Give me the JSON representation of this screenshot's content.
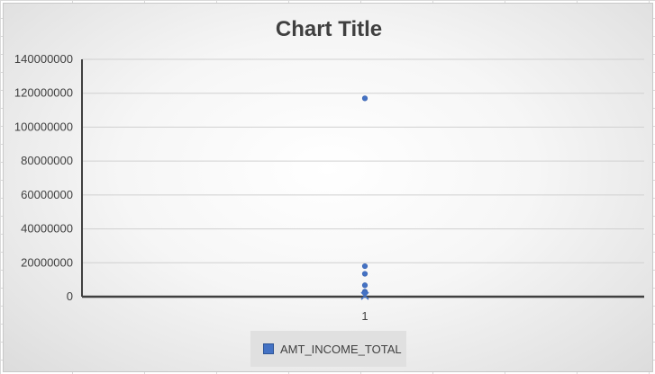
{
  "chart_data": {
    "type": "scatter",
    "title": "Chart Title",
    "xlabel": "",
    "ylabel": "",
    "x_ticks": [
      "1"
    ],
    "y_ticks": [
      "140000000",
      "120000000",
      "100000000",
      "80000000",
      "60000000",
      "40000000",
      "20000000",
      "0"
    ],
    "ylim": [
      0,
      140000000
    ],
    "grid": true,
    "legend_position": "bottom",
    "series": [
      {
        "name": "AMT_INCOME_TOTAL",
        "color": "#4472c4",
        "marker": "circle",
        "x": [
          1,
          1,
          1,
          1,
          1,
          1
        ],
        "y": [
          117000000,
          18000000,
          13500000,
          6750000,
          3000000,
          2250000
        ]
      }
    ]
  }
}
